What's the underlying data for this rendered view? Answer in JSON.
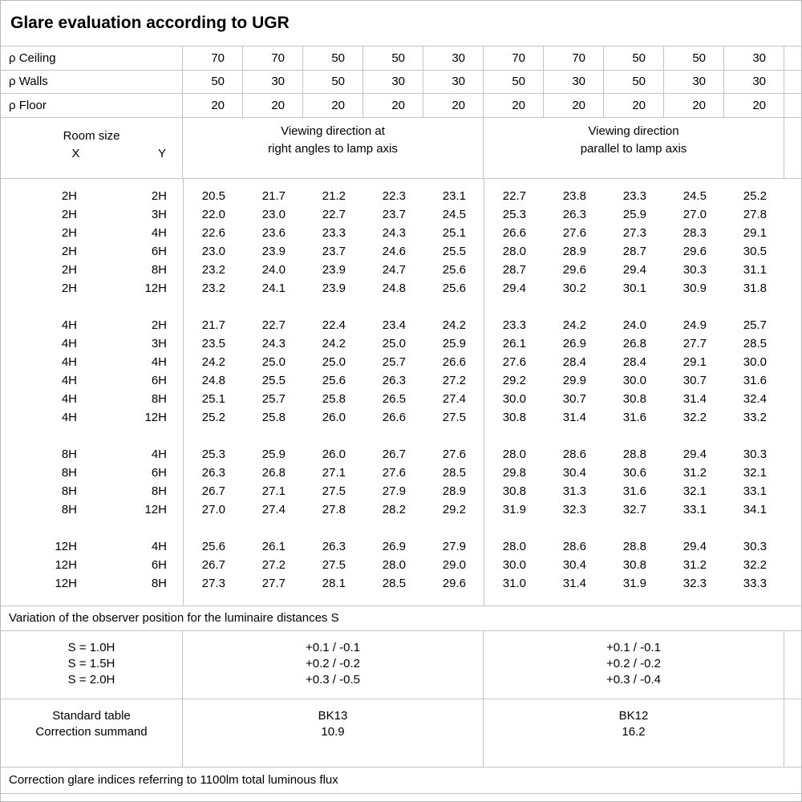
{
  "title": "Glare evaluation according to UGR",
  "reflectance": {
    "rows": [
      {
        "label": "ρ Ceiling",
        "values": [
          "70",
          "70",
          "50",
          "50",
          "30",
          "70",
          "70",
          "50",
          "50",
          "30"
        ]
      },
      {
        "label": "ρ Walls",
        "values": [
          "50",
          "30",
          "50",
          "30",
          "30",
          "50",
          "30",
          "50",
          "30",
          "30"
        ]
      },
      {
        "label": "ρ Floor",
        "values": [
          "20",
          "20",
          "20",
          "20",
          "20",
          "20",
          "20",
          "20",
          "20",
          "20"
        ]
      }
    ]
  },
  "room_size": {
    "label": "Room size",
    "x_label": "X",
    "y_label": "Y"
  },
  "group_headers": {
    "left_line1": "Viewing direction at",
    "left_line2": "right angles to lamp axis",
    "right_line1": "Viewing direction",
    "right_line2": "parallel to lamp axis"
  },
  "ugr_table": {
    "blocks": [
      {
        "rows": [
          {
            "x": "2H",
            "y": "2H",
            "values": [
              "20.5",
              "21.7",
              "21.2",
              "22.3",
              "23.1",
              "22.7",
              "23.8",
              "23.3",
              "24.5",
              "25.2"
            ]
          },
          {
            "x": "2H",
            "y": "3H",
            "values": [
              "22.0",
              "23.0",
              "22.7",
              "23.7",
              "24.5",
              "25.3",
              "26.3",
              "25.9",
              "27.0",
              "27.8"
            ]
          },
          {
            "x": "2H",
            "y": "4H",
            "values": [
              "22.6",
              "23.6",
              "23.3",
              "24.3",
              "25.1",
              "26.6",
              "27.6",
              "27.3",
              "28.3",
              "29.1"
            ]
          },
          {
            "x": "2H",
            "y": "6H",
            "values": [
              "23.0",
              "23.9",
              "23.7",
              "24.6",
              "25.5",
              "28.0",
              "28.9",
              "28.7",
              "29.6",
              "30.5"
            ]
          },
          {
            "x": "2H",
            "y": "8H",
            "values": [
              "23.2",
              "24.0",
              "23.9",
              "24.7",
              "25.6",
              "28.7",
              "29.6",
              "29.4",
              "30.3",
              "31.1"
            ]
          },
          {
            "x": "2H",
            "y": "12H",
            "values": [
              "23.2",
              "24.1",
              "23.9",
              "24.8",
              "25.6",
              "29.4",
              "30.2",
              "30.1",
              "30.9",
              "31.8"
            ]
          }
        ]
      },
      {
        "rows": [
          {
            "x": "4H",
            "y": "2H",
            "values": [
              "21.7",
              "22.7",
              "22.4",
              "23.4",
              "24.2",
              "23.3",
              "24.2",
              "24.0",
              "24.9",
              "25.7"
            ]
          },
          {
            "x": "4H",
            "y": "3H",
            "values": [
              "23.5",
              "24.3",
              "24.2",
              "25.0",
              "25.9",
              "26.1",
              "26.9",
              "26.8",
              "27.7",
              "28.5"
            ]
          },
          {
            "x": "4H",
            "y": "4H",
            "values": [
              "24.2",
              "25.0",
              "25.0",
              "25.7",
              "26.6",
              "27.6",
              "28.4",
              "28.4",
              "29.1",
              "30.0"
            ]
          },
          {
            "x": "4H",
            "y": "6H",
            "values": [
              "24.8",
              "25.5",
              "25.6",
              "26.3",
              "27.2",
              "29.2",
              "29.9",
              "30.0",
              "30.7",
              "31.6"
            ]
          },
          {
            "x": "4H",
            "y": "8H",
            "values": [
              "25.1",
              "25.7",
              "25.8",
              "26.5",
              "27.4",
              "30.0",
              "30.7",
              "30.8",
              "31.4",
              "32.4"
            ]
          },
          {
            "x": "4H",
            "y": "12H",
            "values": [
              "25.2",
              "25.8",
              "26.0",
              "26.6",
              "27.5",
              "30.8",
              "31.4",
              "31.6",
              "32.2",
              "33.2"
            ]
          }
        ]
      },
      {
        "rows": [
          {
            "x": "8H",
            "y": "4H",
            "values": [
              "25.3",
              "25.9",
              "26.0",
              "26.7",
              "27.6",
              "28.0",
              "28.6",
              "28.8",
              "29.4",
              "30.3"
            ]
          },
          {
            "x": "8H",
            "y": "6H",
            "values": [
              "26.3",
              "26.8",
              "27.1",
              "27.6",
              "28.5",
              "29.8",
              "30.4",
              "30.6",
              "31.2",
              "32.1"
            ]
          },
          {
            "x": "8H",
            "y": "8H",
            "values": [
              "26.7",
              "27.1",
              "27.5",
              "27.9",
              "28.9",
              "30.8",
              "31.3",
              "31.6",
              "32.1",
              "33.1"
            ]
          },
          {
            "x": "8H",
            "y": "12H",
            "values": [
              "27.0",
              "27.4",
              "27.8",
              "28.2",
              "29.2",
              "31.9",
              "32.3",
              "32.7",
              "33.1",
              "34.1"
            ]
          }
        ]
      },
      {
        "rows": [
          {
            "x": "12H",
            "y": "4H",
            "values": [
              "25.6",
              "26.1",
              "26.3",
              "26.9",
              "27.9",
              "28.0",
              "28.6",
              "28.8",
              "29.4",
              "30.3"
            ]
          },
          {
            "x": "12H",
            "y": "6H",
            "values": [
              "26.7",
              "27.2",
              "27.5",
              "28.0",
              "29.0",
              "30.0",
              "30.4",
              "30.8",
              "31.2",
              "32.2"
            ]
          },
          {
            "x": "12H",
            "y": "8H",
            "values": [
              "27.3",
              "27.7",
              "28.1",
              "28.5",
              "29.6",
              "31.0",
              "31.4",
              "31.9",
              "32.3",
              "33.3"
            ]
          }
        ]
      }
    ]
  },
  "variation_note": "Variation of the observer position for the luminaire distances S",
  "s_section": {
    "labels": [
      "S = 1.0H",
      "S = 1.5H",
      "S = 2.0H"
    ],
    "left_values": [
      "+0.1 / -0.1",
      "+0.2 / -0.2",
      "+0.3 / -0.5"
    ],
    "right_values": [
      "+0.1 / -0.1",
      "+0.2 / -0.2",
      "+0.3 / -0.4"
    ]
  },
  "standard_section": {
    "labels": [
      "Standard table",
      "Correction summand"
    ],
    "left_values": [
      "BK13",
      "10.9"
    ],
    "right_values": [
      "BK12",
      "16.2"
    ]
  },
  "footer_note": "Correction glare indices referring to 1100lm total luminous flux"
}
